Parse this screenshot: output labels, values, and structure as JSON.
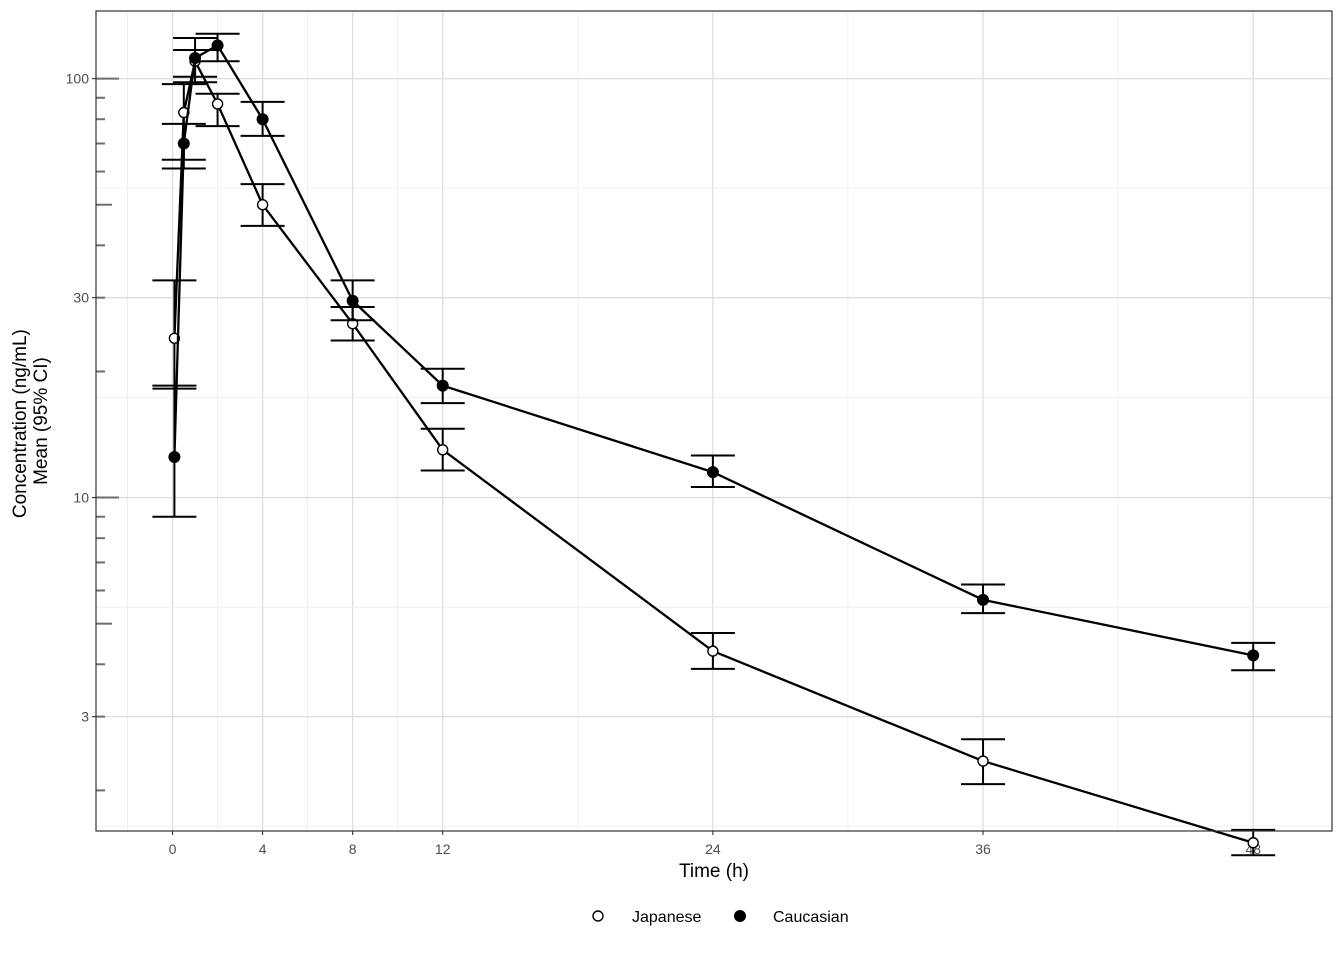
{
  "chart_data": {
    "type": "line",
    "xlabel": "Time (h)",
    "ylabel_lines": [
      "Concentration (ng/mL)",
      "Mean (95% CI)"
    ],
    "x_ticks": [
      0,
      4,
      8,
      12,
      24,
      36,
      48
    ],
    "x_range": [
      -3.4,
      51.5
    ],
    "y_scale": "log10",
    "y_ticks": [
      3,
      10,
      30,
      100
    ],
    "y_range": [
      1.6,
      145
    ],
    "grid": true,
    "legend_position": "bottom",
    "series": [
      {
        "name": "Japanese",
        "marker": "open-circle",
        "x": [
          0.083,
          0.5,
          1,
          2,
          4,
          8,
          12,
          24,
          36,
          48
        ],
        "mean": [
          24.0,
          83.0,
          110.0,
          87.0,
          50.0,
          26.0,
          13.0,
          4.3,
          2.35,
          1.5
        ],
        "lower": [
          18.2,
          64.0,
          98.0,
          77.0,
          44.5,
          23.7,
          11.6,
          3.9,
          2.07,
          1.4
        ],
        "upper": [
          33.0,
          97.0,
          117.0,
          92.0,
          56.0,
          28.5,
          14.6,
          4.75,
          2.65,
          1.61
        ]
      },
      {
        "name": "Caucasian",
        "marker": "filled-circle",
        "x": [
          0.083,
          0.5,
          1,
          2,
          4,
          8,
          12,
          24,
          36,
          48
        ],
        "mean": [
          12.5,
          70.0,
          112.0,
          120.0,
          80.0,
          29.5,
          18.5,
          11.5,
          5.7,
          4.2
        ],
        "lower": [
          9.0,
          61.0,
          101.0,
          110.0,
          73.0,
          26.5,
          16.8,
          10.6,
          5.3,
          3.87
        ],
        "upper": [
          18.5,
          78.0,
          125.0,
          128.0,
          88.0,
          33.0,
          20.3,
          12.6,
          6.2,
          4.5
        ]
      }
    ]
  }
}
